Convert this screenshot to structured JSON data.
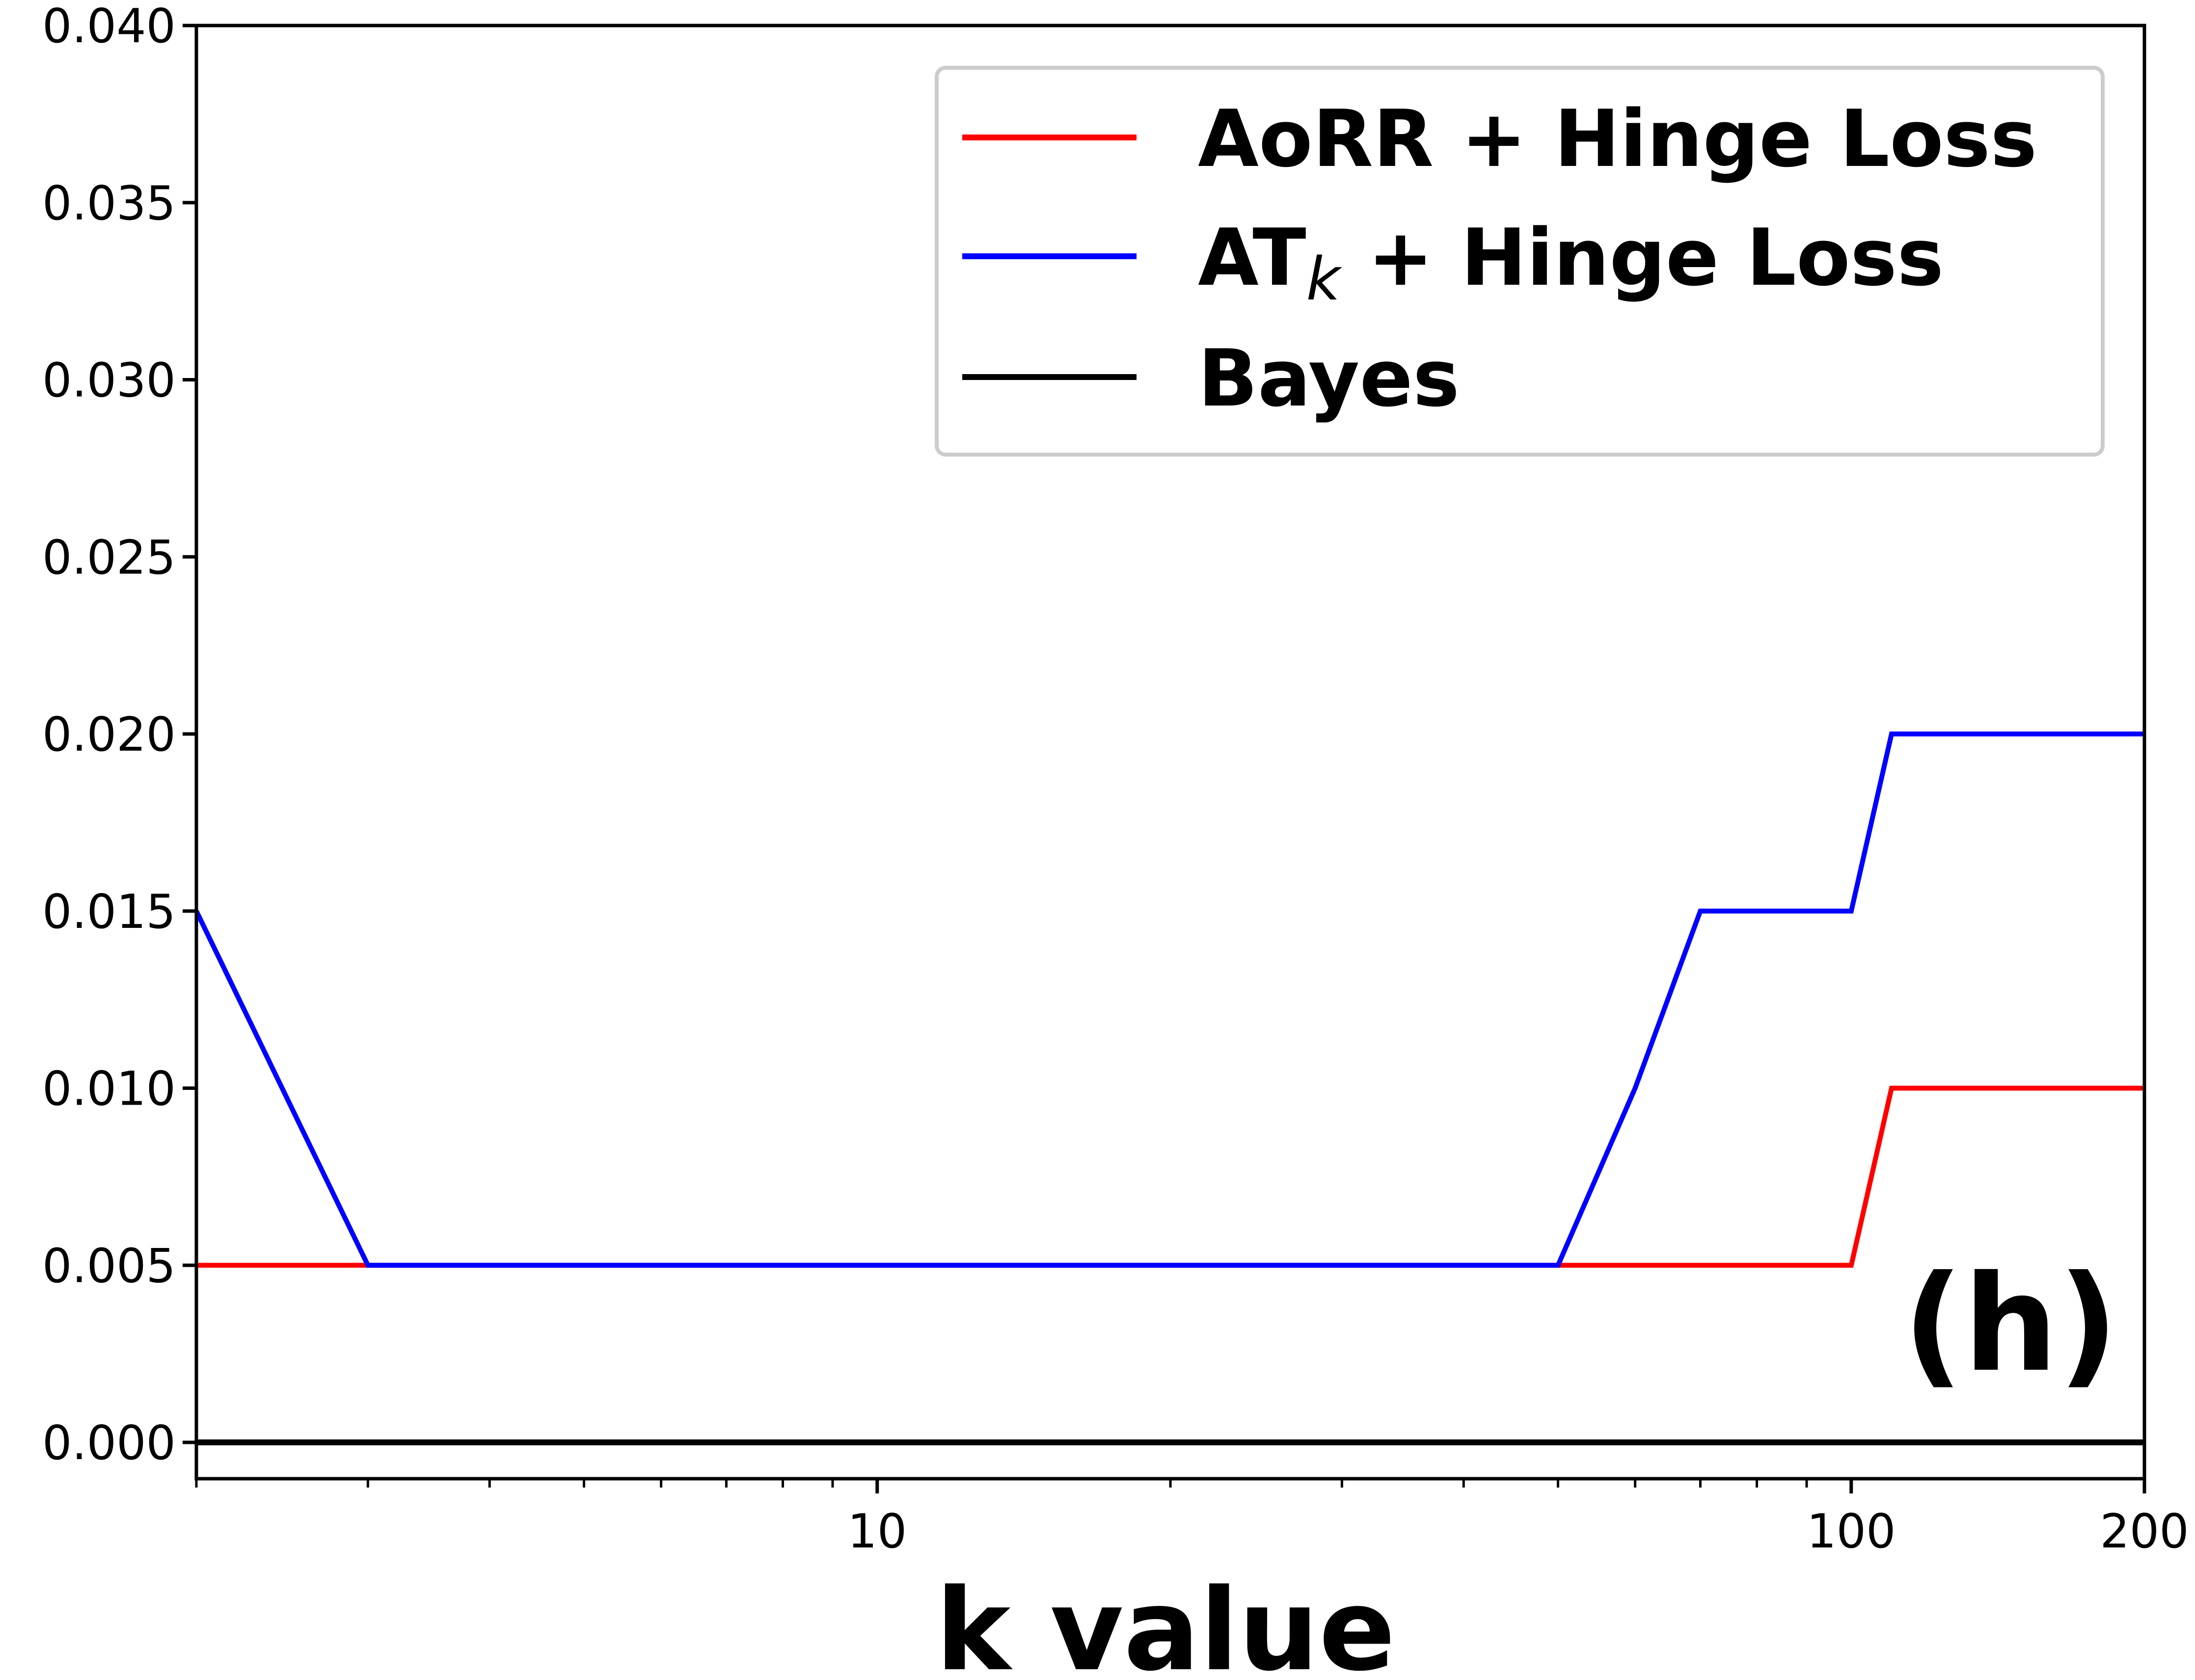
{
  "chart_data": {
    "type": "line",
    "xlabel": "k value",
    "ylabel": "",
    "xscale": "log",
    "xlim": [
      2,
      200
    ],
    "ylim": [
      0.0,
      0.04
    ],
    "xticks": [
      10,
      100,
      200
    ],
    "xtick_labels": [
      "10",
      "100",
      "200"
    ],
    "yticks": [
      0.0,
      0.005,
      0.01,
      0.015,
      0.02,
      0.025,
      0.03,
      0.035,
      0.04
    ],
    "ytick_labels": [
      "0.000",
      "0.005",
      "0.010",
      "0.015",
      "0.020",
      "0.025",
      "0.030",
      "0.035",
      "0.040"
    ],
    "grid": false,
    "legend_position": "top-right",
    "annotation": "(h)",
    "series": [
      {
        "name": "AoRR + Hinge Loss",
        "color": "#ff0000",
        "x": [
          2,
          3,
          50,
          100,
          110,
          200
        ],
        "y": [
          0.005,
          0.005,
          0.005,
          0.005,
          0.01,
          0.01
        ]
      },
      {
        "name": "AT_k + Hinge Loss",
        "name_parts": {
          "main": "AT",
          "sub": "k",
          "rest": " + Hinge Loss"
        },
        "color": "#0000ff",
        "x": [
          2,
          3,
          50,
          60,
          70,
          100,
          110,
          200
        ],
        "y": [
          0.015,
          0.005,
          0.005,
          0.01,
          0.015,
          0.015,
          0.02,
          0.02
        ]
      },
      {
        "name": "Bayes",
        "color": "#000000",
        "x": [
          2,
          200
        ],
        "y": [
          0.0,
          0.0
        ]
      }
    ]
  }
}
